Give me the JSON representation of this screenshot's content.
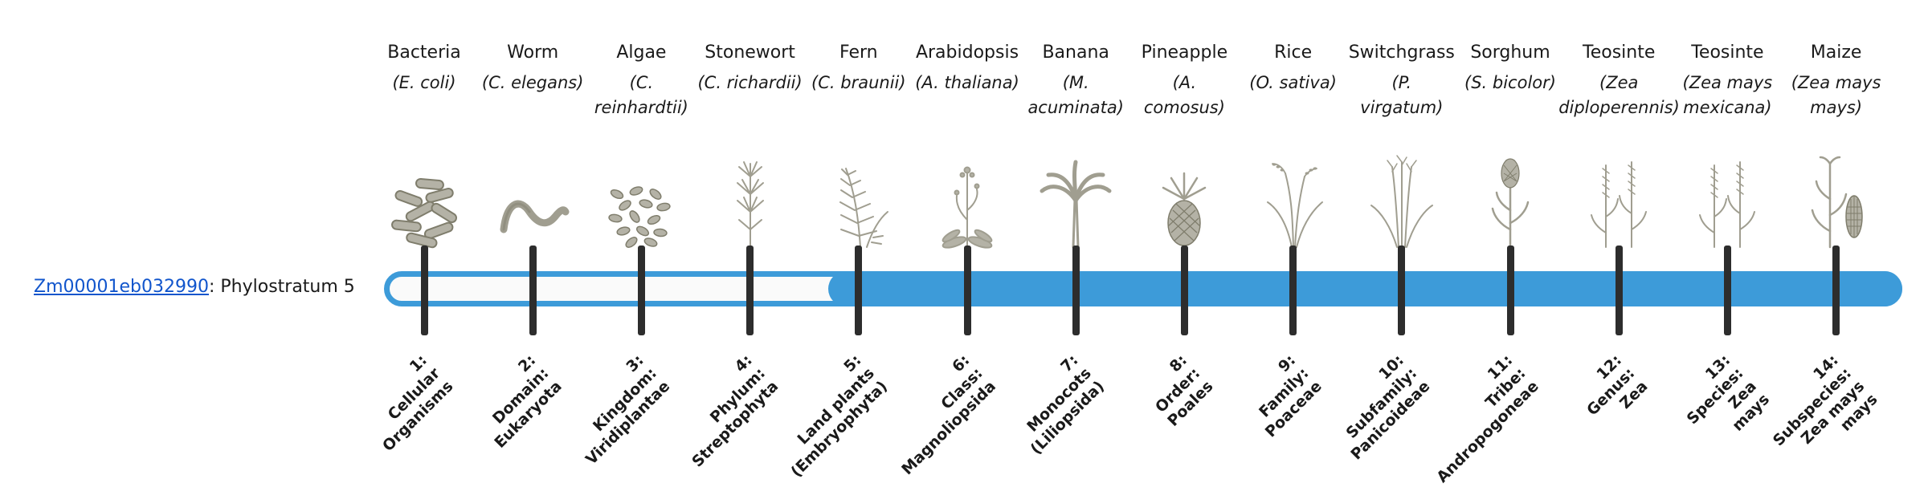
{
  "colors": {
    "bar_blue": "#3d9bd9",
    "track_fill": "#fafafa",
    "tick_dark": "#2d2d2d",
    "link_blue": "#1155cc",
    "text_dark": "#1a1a1a",
    "icon_gray": "#a09e90"
  },
  "gene": {
    "id": "Zm00001eb032990",
    "stratum_text": ": Phylostratum 5"
  },
  "timeline": {
    "highlighted_stratum": 5,
    "total_strata": 14
  },
  "strata": [
    {
      "index": 1,
      "organism": "Bacteria",
      "scientific": "(E. coli)",
      "icon": "bacteria-icon",
      "stratum_label": "1:\nCellular\nOrganisms"
    },
    {
      "index": 2,
      "organism": "Worm",
      "scientific": "(C. elegans)",
      "icon": "worm-icon",
      "stratum_label": "2:\nDomain:\nEukaryota"
    },
    {
      "index": 3,
      "organism": "Algae",
      "scientific": "(C.\nreinhardtii)",
      "icon": "algae-icon",
      "stratum_label": "3:\nKingdom:\nViridiplantae"
    },
    {
      "index": 4,
      "organism": "Stonewort",
      "scientific": "(C. richardii)",
      "icon": "stonewort-icon",
      "stratum_label": "4:\nPhylum:\nStreptophyta"
    },
    {
      "index": 5,
      "organism": "Fern",
      "scientific": "(C. braunii)",
      "icon": "fern-icon",
      "stratum_label": "5:\nLand plants\n(Embryophyta)"
    },
    {
      "index": 6,
      "organism": "Arabidopsis",
      "scientific": "(A. thaliana)",
      "icon": "arabidopsis-icon",
      "stratum_label": "6:\nClass:\nMagnoliopsida"
    },
    {
      "index": 7,
      "organism": "Banana",
      "scientific": "(M.\nacuminata)",
      "icon": "banana-tree-icon",
      "stratum_label": "7:\nMonocots\n(Liliopsida)"
    },
    {
      "index": 8,
      "organism": "Pineapple",
      "scientific": "(A.\ncomosus)",
      "icon": "pineapple-icon",
      "stratum_label": "8:\nOrder:\nPoales"
    },
    {
      "index": 9,
      "organism": "Rice",
      "scientific": "(O. sativa)",
      "icon": "rice-plant-icon",
      "stratum_label": "9:\nFamily:\nPoaceae"
    },
    {
      "index": 10,
      "organism": "Switchgrass",
      "scientific": "(P.\nvirgatum)",
      "icon": "switchgrass-icon",
      "stratum_label": "10:\nSubfamily:\nPanicoideae"
    },
    {
      "index": 11,
      "organism": "Sorghum",
      "scientific": "(S. bicolor)",
      "icon": "sorghum-icon",
      "stratum_label": "11:\nTribe:\nAndropogoneae"
    },
    {
      "index": 12,
      "organism": "Teosinte",
      "scientific": "(Zea\ndiploperennis)",
      "icon": "teosinte-icon",
      "stratum_label": "12:\nGenus:\nZea"
    },
    {
      "index": 13,
      "organism": "Teosinte",
      "scientific": "(Zea mays\nmexicana)",
      "icon": "teosinte-icon",
      "stratum_label": "13:\nSpecies:\nZea\nmays"
    },
    {
      "index": 14,
      "organism": "Maize",
      "scientific": "(Zea mays\nmays)",
      "icon": "maize-icon",
      "stratum_label": "14:\nSubspecies:\nZea mays\nmays"
    }
  ]
}
